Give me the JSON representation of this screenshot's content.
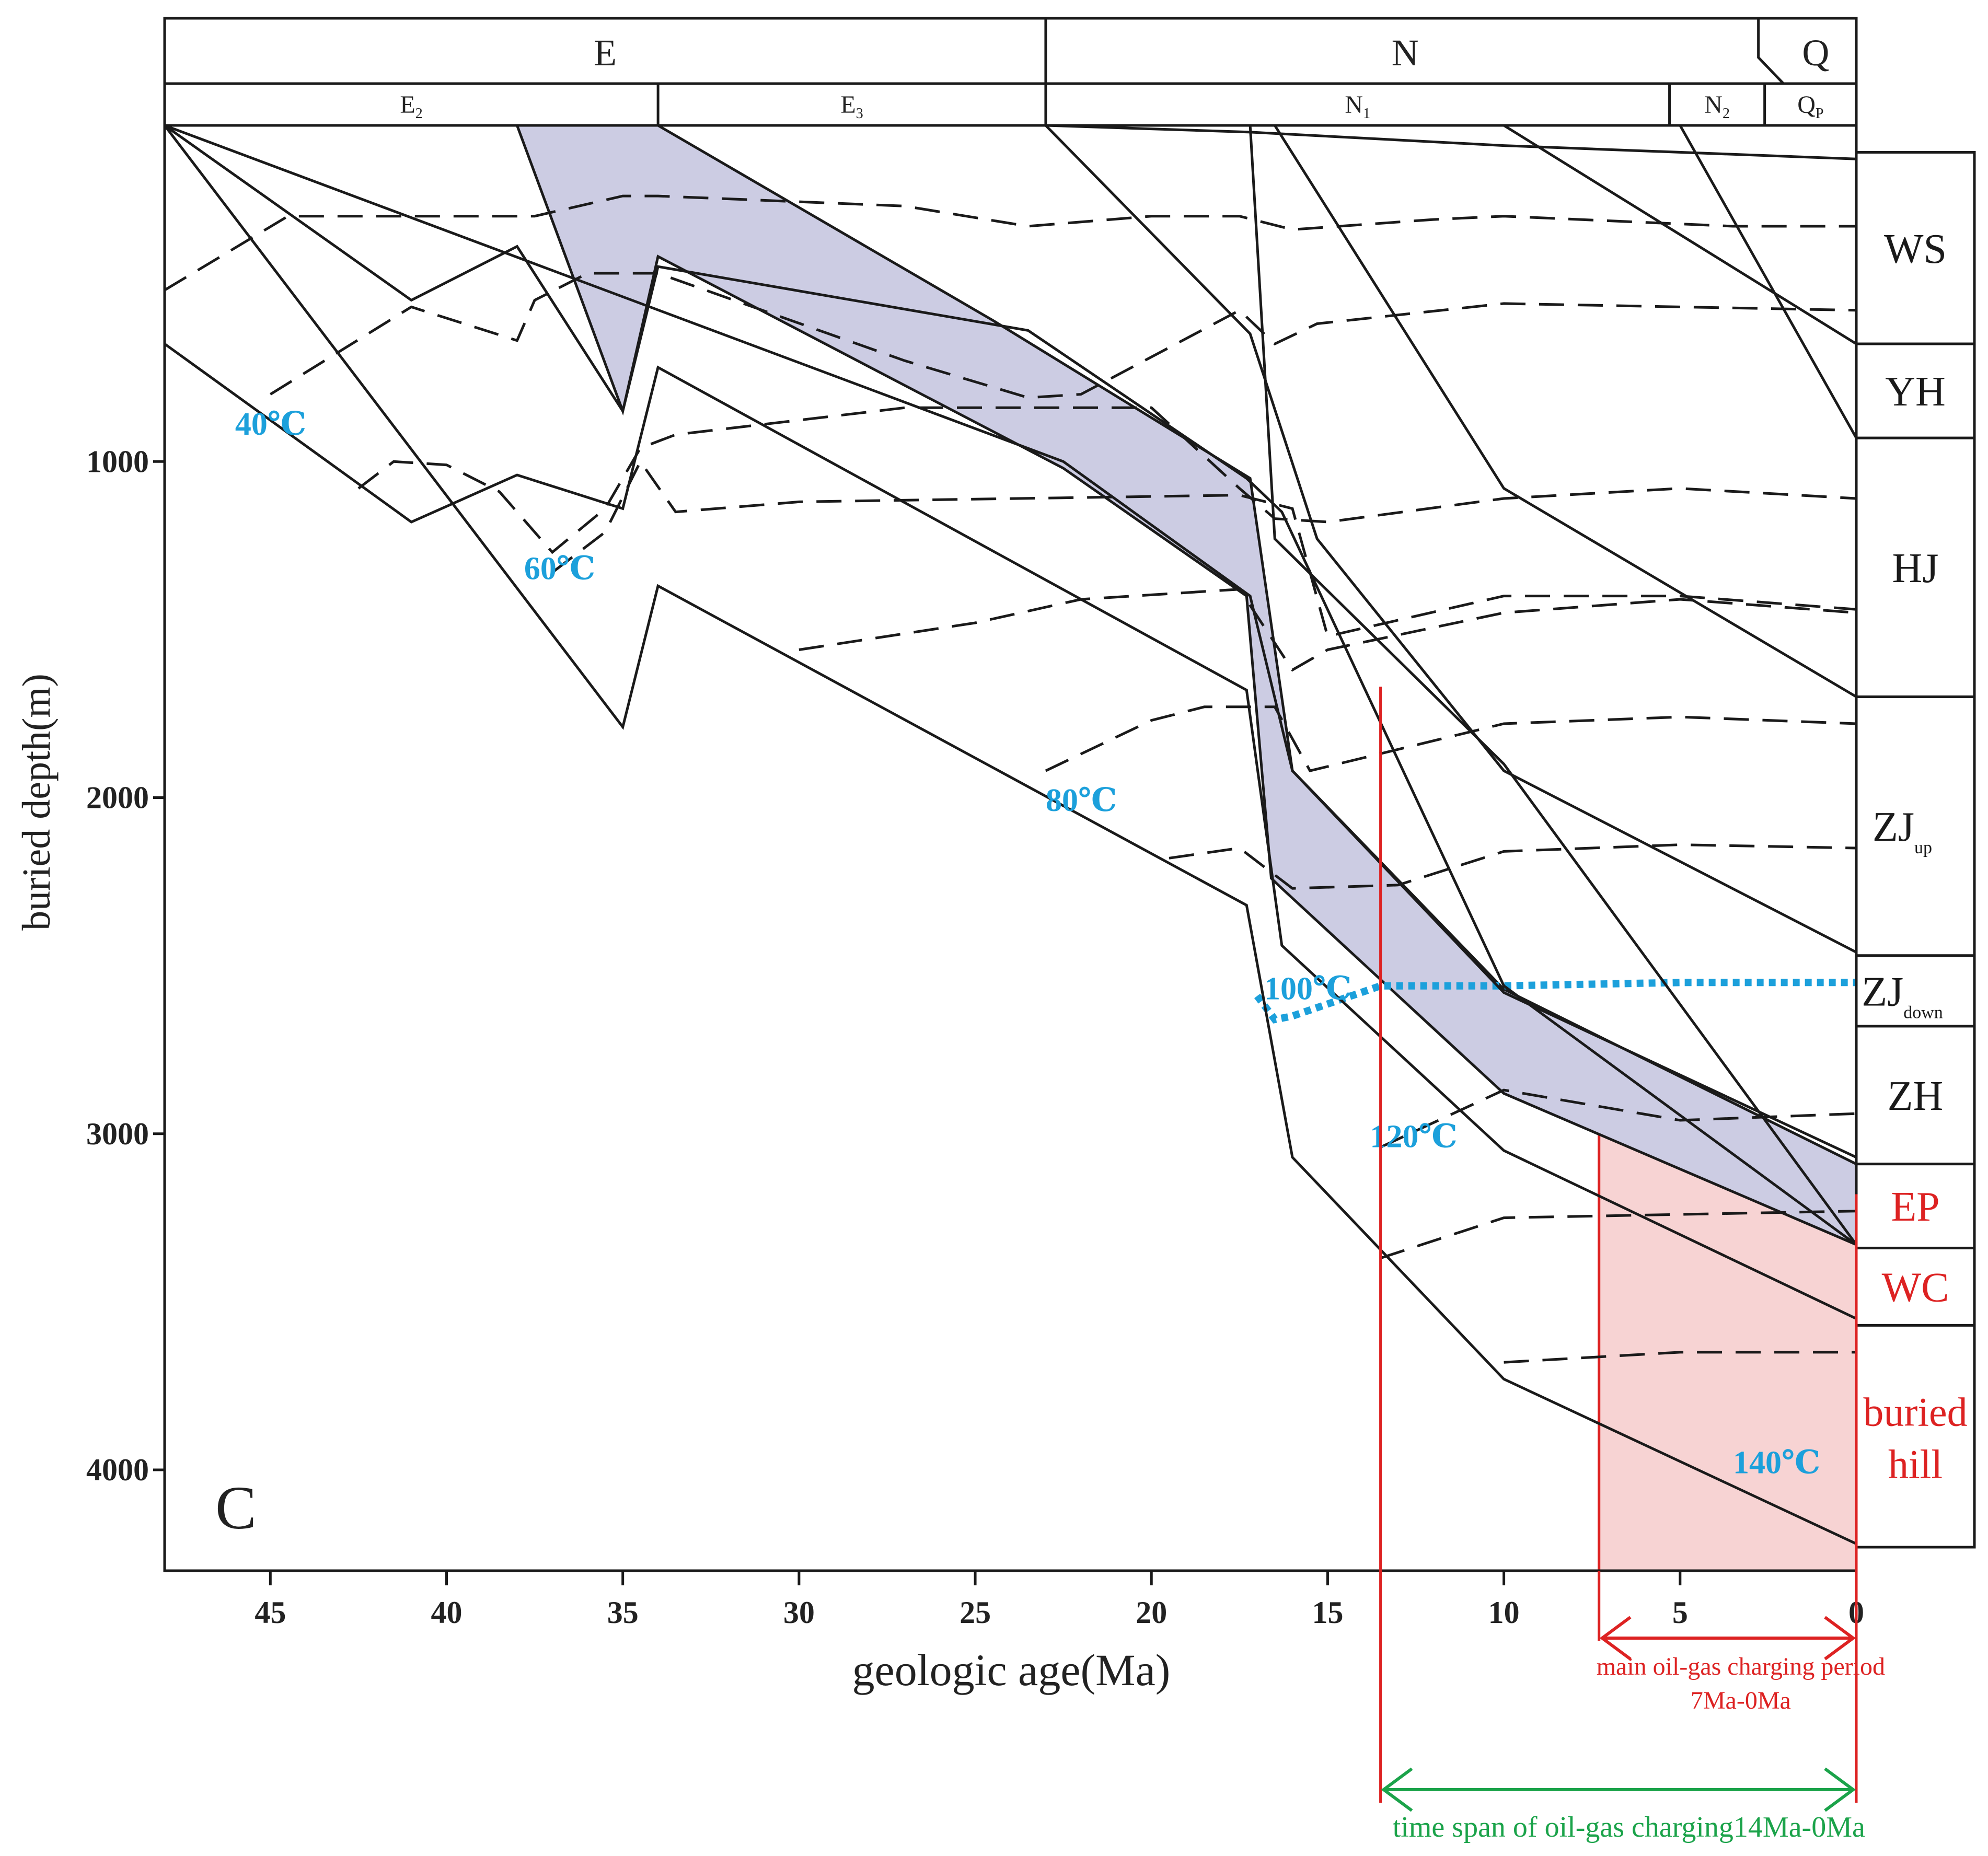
{
  "chart_data": {
    "type": "line",
    "panel_label": "C",
    "xlabel": "geologic age(Ma)",
    "ylabel": "buried depth(m)",
    "xlim": [
      48,
      0
    ],
    "ylim": [
      0,
      4300
    ],
    "x_ticks": [
      45,
      40,
      35,
      30,
      25,
      20,
      15,
      10,
      5,
      0
    ],
    "y_ticks": [
      1000,
      2000,
      3000,
      4000
    ],
    "periods": [
      {
        "label": "E",
        "from": 48,
        "to": 23
      },
      {
        "label": "N",
        "from": 23,
        "to": 2.6
      },
      {
        "label": "Q",
        "from": 2.6,
        "to": 0
      }
    ],
    "epochs": [
      {
        "label": "E",
        "sub": "2",
        "from": 48,
        "to": 34
      },
      {
        "label": "E",
        "sub": "3",
        "from": 34,
        "to": 23
      },
      {
        "label": "N",
        "sub": "1",
        "from": 23,
        "to": 5.3
      },
      {
        "label": "N",
        "sub": "2",
        "from": 5.3,
        "to": 2.6
      },
      {
        "label": "Q",
        "sub": "P",
        "from": 2.6,
        "to": 0
      }
    ],
    "formations": [
      {
        "label": "WS",
        "sub": "",
        "top": 80,
        "bottom": 650,
        "color": "#1a1a1a"
      },
      {
        "label": "YH",
        "sub": "",
        "top": 650,
        "bottom": 930,
        "color": "#1a1a1a"
      },
      {
        "label": "HJ",
        "sub": "",
        "top": 930,
        "bottom": 1700,
        "color": "#1a1a1a"
      },
      {
        "label": "ZJ",
        "sub": "up",
        "top": 1700,
        "bottom": 2470,
        "color": "#1a1a1a"
      },
      {
        "label": "ZJ",
        "sub": "down",
        "top": 2470,
        "bottom": 2680,
        "color": "#1a1a1a"
      },
      {
        "label": "ZH",
        "sub": "",
        "top": 2680,
        "bottom": 3090,
        "color": "#1a1a1a"
      },
      {
        "label": "EP",
        "sub": "",
        "top": 3090,
        "bottom": 3340,
        "color": "#dd2222"
      },
      {
        "label": "WC",
        "sub": "",
        "top": 3340,
        "bottom": 3570,
        "color": "#dd2222"
      },
      {
        "label": "buried",
        "sub": "",
        "top": 3570,
        "bottom": 4230,
        "color": "#dd2222",
        "line2": "hill"
      }
    ],
    "burial_curves": [
      {
        "name": "curve 1",
        "x": [
          48,
          22.5,
          17.2,
          16,
          10,
          0
        ],
        "y": [
          0,
          1000,
          1400,
          1920,
          2580,
          3070
        ]
      },
      {
        "name": "curve 2",
        "x": [
          48,
          41,
          38,
          35,
          34,
          23.5,
          17.3,
          16.3,
          10,
          0
        ],
        "y": [
          0,
          520,
          360,
          850,
          420,
          610,
          1050,
          1150,
          2560,
          3330
        ]
      },
      {
        "name": "curve 3",
        "x": [
          48,
          41,
          38,
          35,
          34,
          17.3,
          16.3,
          10,
          0
        ],
        "y": [
          650,
          1180,
          1040,
          1140,
          720,
          1680,
          2440,
          3050,
          3550
        ]
      },
      {
        "name": "curve 4",
        "x": [
          48,
          35,
          34,
          17.3,
          16,
          10,
          0
        ],
        "y": [
          0,
          1790,
          1370,
          2320,
          3070,
          3730,
          4220
        ]
      },
      {
        "name": "curve 5",
        "x": [
          23,
          17.2,
          15.3,
          10,
          0
        ],
        "y": [
          0,
          620,
          1230,
          1920,
          2460
        ]
      },
      {
        "name": "curve 6",
        "x": [
          17.2,
          16.5,
          10,
          0
        ],
        "y": [
          0,
          1230,
          1900,
          3330
        ]
      },
      {
        "name": "curve 7",
        "x": [
          16.5,
          10,
          0
        ],
        "y": [
          0,
          1080,
          1700
        ]
      },
      {
        "name": "curve 8",
        "x": [
          10,
          0
        ],
        "y": [
          0,
          650
        ]
      },
      {
        "name": "curve 9",
        "x": [
          5,
          0
        ],
        "y": [
          0,
          930
        ]
      }
    ],
    "purple_band": {
      "x": [
        38,
        34,
        24.5,
        17.2,
        16,
        10,
        0,
        0,
        10,
        16.3,
        16.6,
        17.3,
        22.5,
        34,
        35
      ],
      "y": [
        0,
        0,
        580,
        1050,
        1920,
        2570,
        3090,
        3330,
        2880,
        2270,
        2240,
        1400,
        1020,
        390,
        850
      ]
    },
    "charging_area": {
      "x": [
        7.3,
        4,
        1.5,
        0,
        0,
        7.3
      ],
      "y": [
        2850,
        2950,
        3090,
        3180,
        4300,
        4300
      ]
    },
    "isotherms": [
      {
        "label": "40℃",
        "label_x": 46,
        "label_y": 920,
        "x": [
          48,
          44.5,
          37.5,
          35,
          34,
          27,
          23.5,
          20,
          17.5,
          16,
          12,
          10,
          3.5,
          0
        ],
        "y": [
          490,
          270,
          270,
          210,
          210,
          240,
          300,
          270,
          270,
          310,
          280,
          270,
          300,
          300
        ],
        "dash": true
      },
      {
        "label": "60℃",
        "label_x": 37.8,
        "label_y": 1350,
        "x": [
          45,
          41,
          38,
          37.5,
          36,
          35,
          34,
          27,
          23.5,
          22,
          17.5,
          16.5,
          15.3,
          10,
          0
        ],
        "y": [
          800,
          540,
          640,
          520,
          440,
          440,
          440,
          700,
          810,
          800,
          550,
          650,
          590,
          530,
          550
        ],
        "dash": true
      },
      {
        "label": "80℃",
        "label_x": 23,
        "label_y": 2040,
        "x": [
          42.5,
          41.5,
          40,
          38.5,
          37,
          35.5,
          34.5,
          33.5,
          27,
          20,
          17.5,
          16.5,
          15,
          10,
          5,
          0
        ],
        "y": [
          1080,
          1000,
          1010,
          1090,
          1270,
          1140,
          960,
          920,
          840,
          840,
          1080,
          1170,
          1180,
          1110,
          1080,
          1110
        ],
        "dash": true
      },
      {
        "label": "100℃",
        "label_x": 16.8,
        "label_y": 2600,
        "x": [
          37,
          35.5,
          34.5,
          33.5,
          30,
          17.5,
          16,
          15,
          10,
          5,
          0
        ],
        "y": [
          1330,
          1210,
          1000,
          1150,
          1120,
          1100,
          1140,
          1520,
          1400,
          1400,
          1440
        ],
        "dash": true
      },
      {
        "label": "120℃",
        "label_x": 13.8,
        "label_y": 3040,
        "x": [
          30,
          25,
          22,
          17.5,
          16,
          15,
          10,
          5,
          0
        ],
        "y": [
          1560,
          1480,
          1410,
          1380,
          1620,
          1560,
          1450,
          1410,
          1450
        ],
        "dash": true
      },
      {
        "label": "140℃",
        "label_x": 3.5,
        "label_y": 4010,
        "x": [
          23,
          20,
          18.5,
          16.5,
          15.5,
          10,
          5,
          0
        ],
        "y": [
          1920,
          1770,
          1730,
          1730,
          1920,
          1780,
          1760,
          1780
        ],
        "dash": true
      },
      {
        "label": "",
        "x": [
          19.5,
          17.5,
          16,
          13,
          10,
          5,
          0
        ],
        "y": [
          2180,
          2150,
          2270,
          2260,
          2160,
          2140,
          2150
        ],
        "dash": true
      },
      {
        "label": "",
        "x": [
          13.5,
          10,
          5,
          0
        ],
        "y": [
          3040,
          2870,
          2960,
          2940
        ],
        "dash": true
      },
      {
        "label": "",
        "x": [
          13.5,
          10,
          5,
          0
        ],
        "y": [
          3370,
          3250,
          3240,
          3230
        ],
        "dash": true
      },
      {
        "label": "",
        "x": [
          10,
          5,
          0
        ],
        "y": [
          3680,
          3650,
          3650
        ],
        "dash": true
      }
    ],
    "isotherm_100": {
      "x": [
        17,
        16.5,
        16,
        13.5,
        10,
        5,
        0
      ],
      "y": [
        2590,
        2660,
        2650,
        2560,
        2560,
        2550,
        2550
      ]
    },
    "charging_markers": {
      "start_x": 13.5,
      "end_x": 0,
      "main_start_x": 7.3
    },
    "annotations": {
      "main_charging": "main oil-gas charging period",
      "main_charging_range": "7Ma-0Ma",
      "time_span": "time span of oil-gas charging14Ma-0Ma"
    },
    "colors": {
      "axis": "#1a1a1a",
      "purple_band": "#cccce3",
      "charging_fill": "#f7d3d3",
      "red": "#dd2222",
      "blue": "#1ca0db",
      "green": "#1ba34a"
    }
  }
}
